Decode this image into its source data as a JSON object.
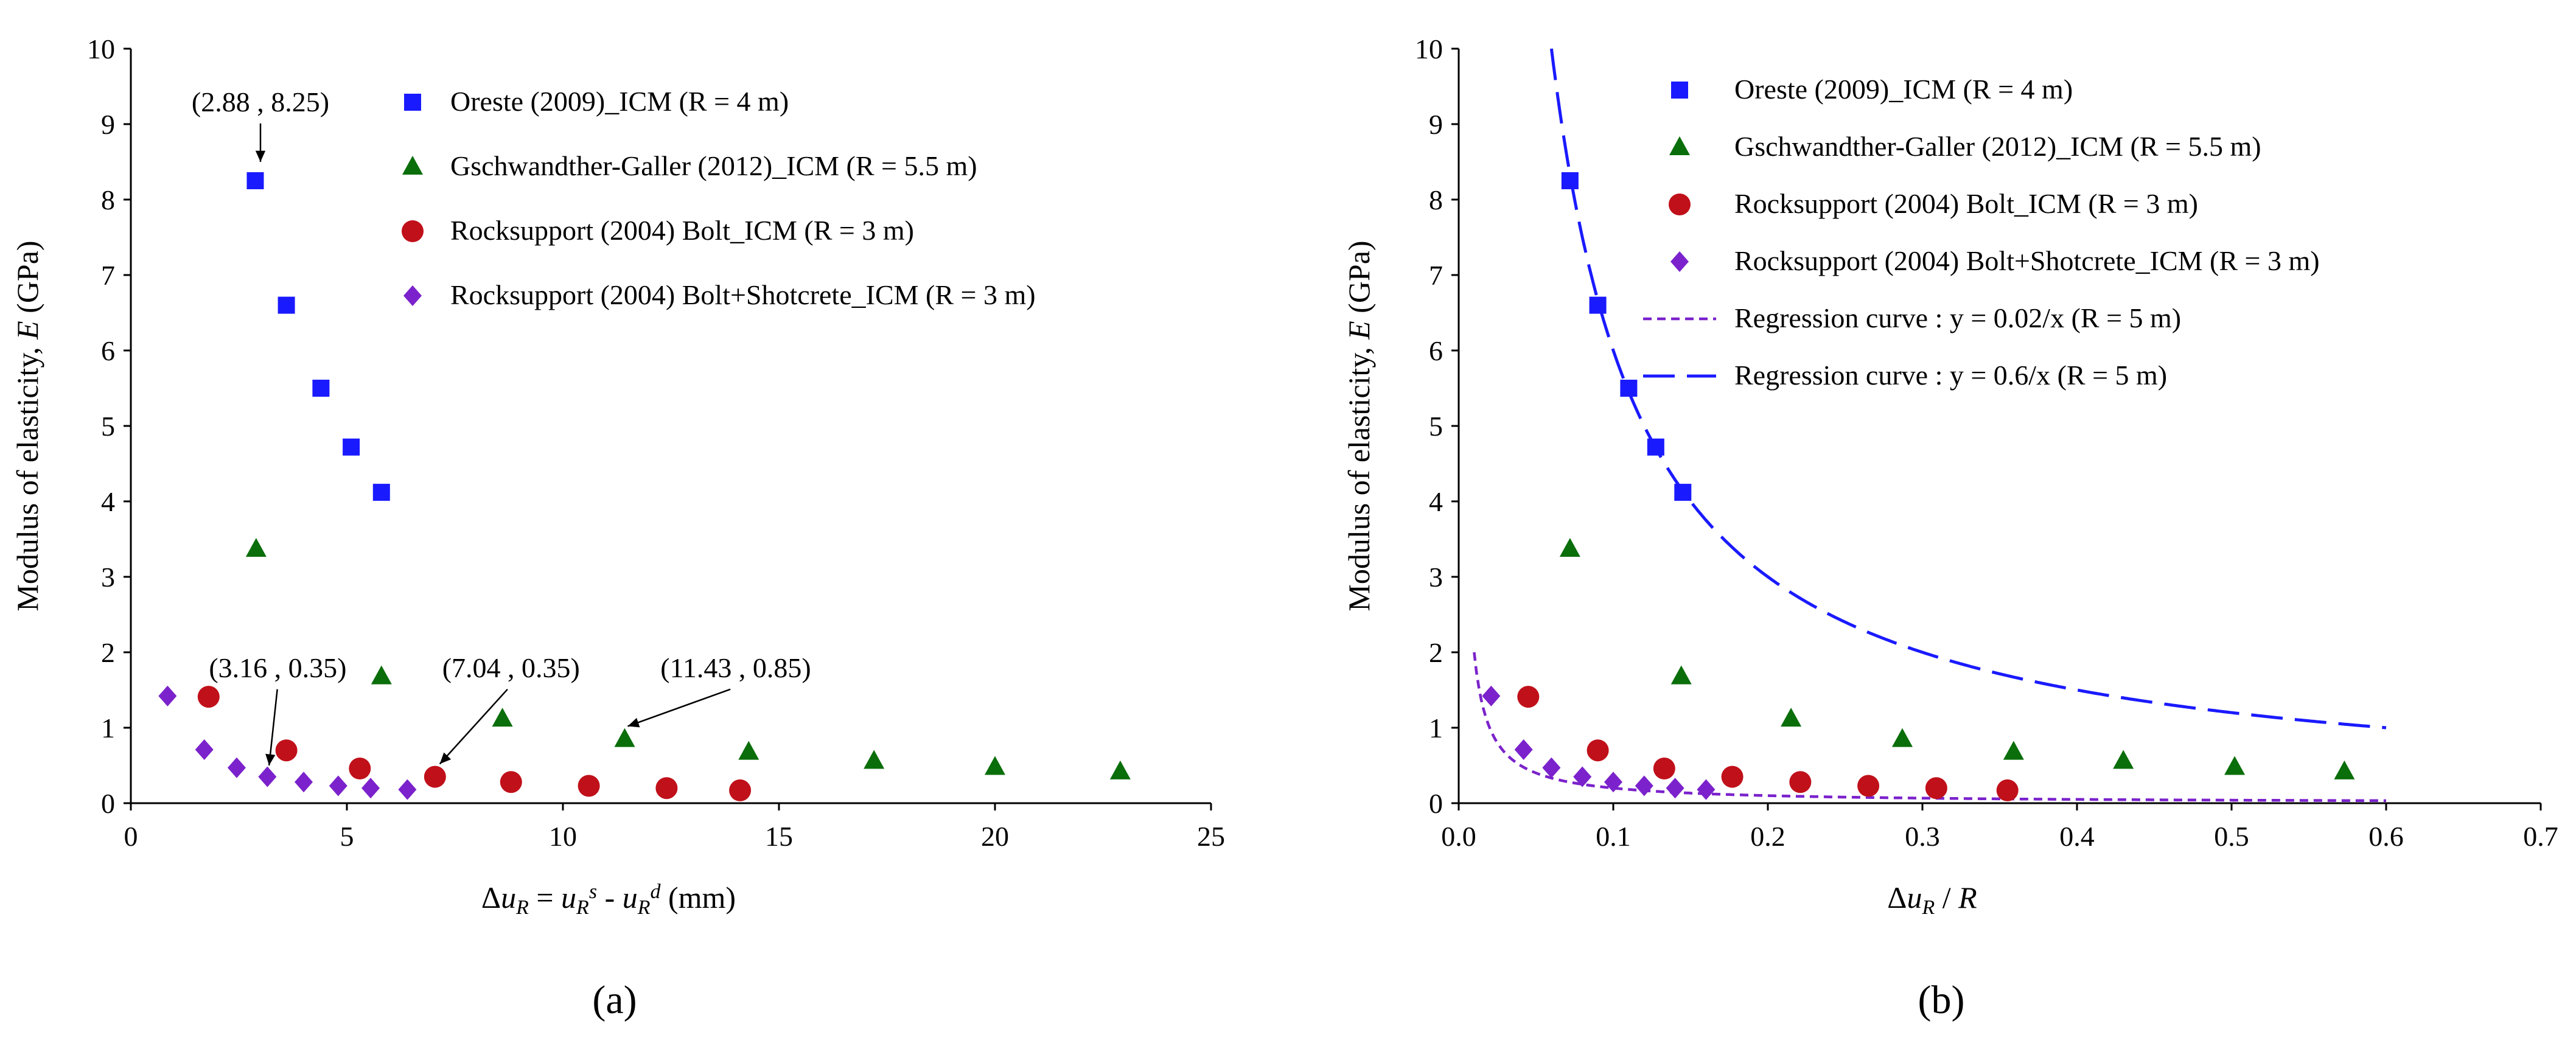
{
  "chart_data": [
    {
      "type": "scatter",
      "panel_label": "(a)",
      "ylabel": "Modulus of elasticity, E (GPa)",
      "xlabel": "Δu_R = u_R^s - u_R^d (mm)",
      "xlim": [
        0,
        25
      ],
      "ylim": [
        0,
        10
      ],
      "xticks": [
        "0",
        "5",
        "10",
        "15",
        "20",
        "25"
      ],
      "yticks": [
        "0",
        "1",
        "2",
        "3",
        "4",
        "5",
        "6",
        "7",
        "8",
        "9",
        "10"
      ],
      "legend_position": "top-center",
      "series": [
        {
          "name": "Oreste (2009)_ICM (R = 4 m)",
          "marker": "square",
          "color": "#1a1aff",
          "points": [
            [
              2.88,
              8.25
            ],
            [
              3.6,
              6.6
            ],
            [
              4.4,
              5.5
            ],
            [
              5.1,
              4.72
            ],
            [
              5.8,
              4.12
            ]
          ]
        },
        {
          "name": "Gschwandther-Galler (2012)_ICM (R = 5.5 m)",
          "marker": "triangle",
          "color": "#0a6e0a",
          "points": [
            [
              2.9,
              3.37
            ],
            [
              5.8,
              1.68
            ],
            [
              8.6,
              1.12
            ],
            [
              11.43,
              0.85
            ],
            [
              14.3,
              0.68
            ],
            [
              17.2,
              0.56
            ],
            [
              20.0,
              0.48
            ],
            [
              22.9,
              0.42
            ]
          ]
        },
        {
          "name": "Rocksupport (2004) Bolt_ICM (R = 3 m)",
          "marker": "circle",
          "color": "#c0101a",
          "points": [
            [
              1.8,
              1.41
            ],
            [
              3.6,
              0.7
            ],
            [
              5.3,
              0.46
            ],
            [
              7.04,
              0.35
            ],
            [
              8.8,
              0.28
            ],
            [
              10.6,
              0.23
            ],
            [
              12.4,
              0.2
            ],
            [
              14.1,
              0.17
            ]
          ]
        },
        {
          "name": "Rocksupport (2004) Bolt+Shotcrete_ICM (R = 3 m)",
          "marker": "diamond",
          "color": "#7b22cc",
          "points": [
            [
              0.85,
              1.42
            ],
            [
              1.7,
              0.71
            ],
            [
              2.45,
              0.47
            ],
            [
              3.16,
              0.35
            ],
            [
              4.0,
              0.28
            ],
            [
              4.8,
              0.23
            ],
            [
              5.55,
              0.2
            ],
            [
              6.4,
              0.18
            ]
          ]
        }
      ],
      "annotations": [
        {
          "text": "(2.88 , 8.25)",
          "label_at": [
            3.0,
            9.3
          ],
          "arrow_to": [
            3.0,
            8.5
          ]
        },
        {
          "text": "(3.16 , 0.35)",
          "label_at": [
            3.4,
            1.8
          ],
          "arrow_to": [
            3.2,
            0.5
          ]
        },
        {
          "text": "(7.04 , 0.35)",
          "label_at": [
            8.8,
            1.8
          ],
          "arrow_to": [
            7.15,
            0.52
          ]
        },
        {
          "text": "(11.43 , 0.85)",
          "label_at": [
            14.0,
            1.8
          ],
          "arrow_to": [
            11.5,
            1.02
          ]
        }
      ]
    },
    {
      "type": "scatter",
      "panel_label": "(b)",
      "ylabel": "Modulus of elasticity, E (GPa)",
      "xlabel": "Δu_R / R",
      "xlim": [
        0,
        0.7
      ],
      "ylim": [
        0,
        10
      ],
      "xticks": [
        "0.0",
        "0.1",
        "0.2",
        "0.3",
        "0.4",
        "0.5",
        "0.6",
        "0.7"
      ],
      "yticks": [
        "0",
        "1",
        "2",
        "3",
        "4",
        "5",
        "6",
        "7",
        "8",
        "9",
        "10"
      ],
      "legend_position": "top-center",
      "series": [
        {
          "name": "Oreste (2009)_ICM (R = 4 m)",
          "marker": "square",
          "color": "#1a1aff",
          "points": [
            [
              0.072,
              8.25
            ],
            [
              0.09,
              6.6
            ],
            [
              0.11,
              5.5
            ],
            [
              0.1275,
              4.72
            ],
            [
              0.145,
              4.12
            ]
          ]
        },
        {
          "name": "Gschwandther-Galler (2012)_ICM (R = 5.5 m)",
          "marker": "triangle",
          "color": "#0a6e0a",
          "points": [
            [
              0.072,
              3.37
            ],
            [
              0.144,
              1.68
            ],
            [
              0.215,
              1.12
            ],
            [
              0.287,
              0.85
            ],
            [
              0.359,
              0.68
            ],
            [
              0.43,
              0.56
            ],
            [
              0.502,
              0.48
            ],
            [
              0.573,
              0.42
            ]
          ]
        },
        {
          "name": "Rocksupport (2004) Bolt_ICM (R = 3 m)",
          "marker": "circle",
          "color": "#c0101a",
          "points": [
            [
              0.045,
              1.41
            ],
            [
              0.09,
              0.7
            ],
            [
              0.133,
              0.46
            ],
            [
              0.177,
              0.35
            ],
            [
              0.221,
              0.28
            ],
            [
              0.265,
              0.23
            ],
            [
              0.309,
              0.2
            ],
            [
              0.355,
              0.17
            ]
          ]
        },
        {
          "name": "Rocksupport (2004) Bolt+Shotcrete_ICM (R = 3 m)",
          "marker": "diamond",
          "color": "#7b22cc",
          "points": [
            [
              0.021,
              1.42
            ],
            [
              0.042,
              0.71
            ],
            [
              0.06,
              0.47
            ],
            [
              0.08,
              0.35
            ],
            [
              0.1,
              0.28
            ],
            [
              0.12,
              0.23
            ],
            [
              0.14,
              0.2
            ],
            [
              0.16,
              0.18
            ]
          ]
        }
      ],
      "curves": [
        {
          "name": "Regression curve : y = 0.02/x (R = 5 m)",
          "style": "short-dash",
          "color": "#7b22cc",
          "a": 0.02,
          "x_range": [
            0.01,
            0.6
          ]
        },
        {
          "name": "Regression curve : y = 0.6/x (R = 5 m)",
          "style": "long-dash",
          "color": "#1a1aff",
          "a": 0.6,
          "x_range": [
            0.06,
            0.6
          ]
        }
      ],
      "annotations": []
    }
  ]
}
